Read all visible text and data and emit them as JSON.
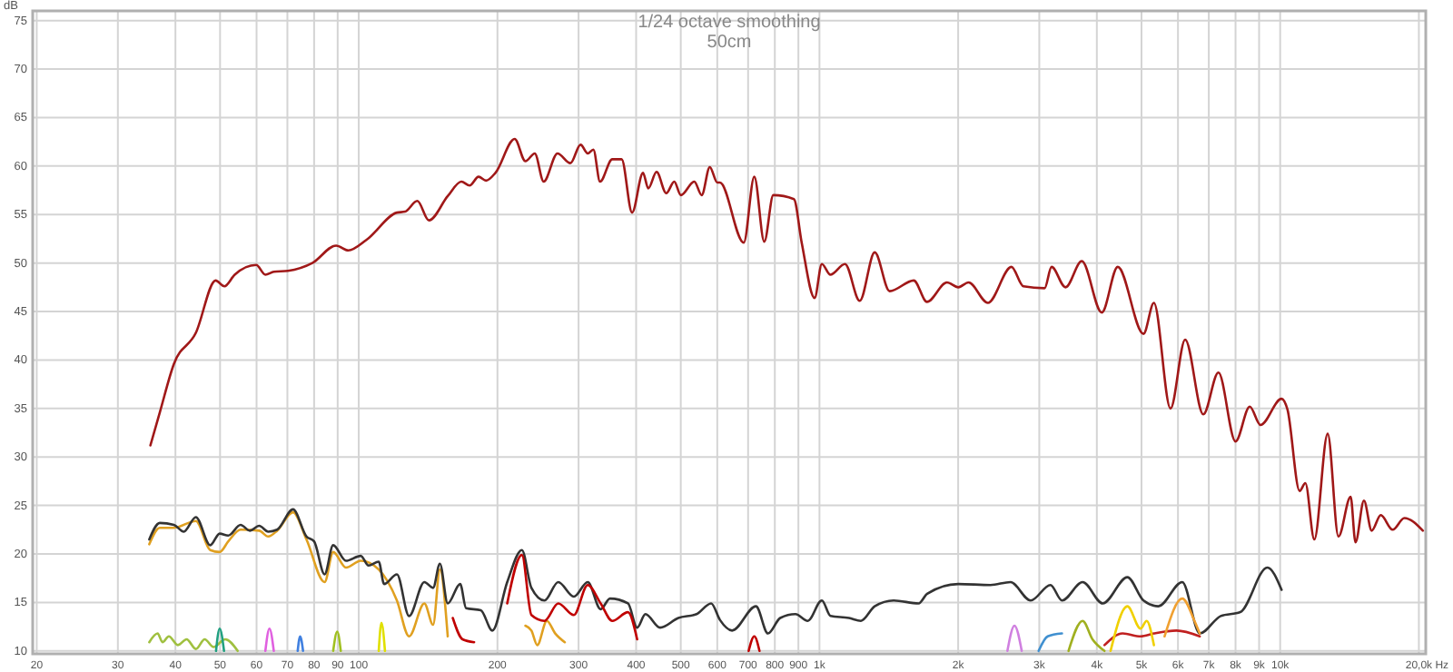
{
  "chart_data": {
    "type": "line",
    "title": "1/24 octave smoothing",
    "subtitle": "50cm",
    "xlabel": "Hz",
    "ylabel": "dB",
    "log": "x",
    "grid": true,
    "xlim": [
      19.6,
      20700
    ],
    "ylim": [
      9.7,
      76
    ],
    "xticks": [
      20,
      30,
      40,
      50,
      60,
      70,
      80,
      90,
      100,
      200,
      300,
      400,
      500,
      600,
      700,
      800,
      900,
      {
        "value": 1000,
        "label": "1k"
      },
      {
        "value": 2000,
        "label": "2k"
      },
      {
        "value": 3000,
        "label": "3k"
      },
      {
        "value": 4000,
        "label": "4k"
      },
      {
        "value": 5000,
        "label": "5k"
      },
      {
        "value": 6000,
        "label": "6k"
      },
      {
        "value": 7000,
        "label": "7k"
      },
      {
        "value": 8000,
        "label": "8k"
      },
      {
        "value": 9000,
        "label": "9k"
      },
      {
        "value": 10000,
        "label": "10k"
      },
      {
        "value": 20000,
        "label": "20,0k"
      }
    ],
    "yticks": [
      10,
      15,
      20,
      25,
      30,
      35,
      40,
      45,
      50,
      55,
      60,
      65,
      70,
      75
    ],
    "series": [
      {
        "color": "#a01818",
        "x": [
          35.3,
          37.0,
          39.7,
          44.3,
          48.9,
          51.1,
          53.8,
          59.9,
          62.7,
          65.4,
          70.2,
          79.3,
          89.3,
          94.9,
          104,
          121,
          126,
          134,
          142,
          156,
          167,
          174,
          182,
          189,
          198,
          218,
          230,
          241,
          252,
          270,
          288,
          303,
          314,
          323,
          334,
          355,
          372,
          392,
          414,
          425,
          443,
          465,
          484,
          500,
          535,
          555,
          578,
          600,
          608,
          685,
          722,
          759,
          794,
          880,
          915,
          976,
          1012,
          1056,
          1136,
          1223,
          1318,
          1420,
          1602,
          1711,
          1891,
          2001,
          2107,
          2320,
          2610,
          2770,
          3080,
          3190,
          3420,
          3710,
          4100,
          4440,
          5050,
          5320,
          5780,
          6220,
          6810,
          7345,
          8000,
          8590,
          9060,
          10070,
          10370,
          11020,
          11340,
          11860,
          12680,
          13380,
          14220,
          14570,
          15200,
          15800,
          16530,
          17540,
          18600,
          20400
        ],
        "values": [
          31.2,
          34.6,
          39.6,
          42.8,
          48.2,
          47.6,
          48.8,
          49.8,
          48.8,
          49.1,
          49.2,
          50,
          51.8,
          51.3,
          52.4,
          55.2,
          55.3,
          56.4,
          54.4,
          56.9,
          58.4,
          58,
          58.9,
          58.5,
          59.3,
          62.8,
          60.5,
          61.3,
          58.4,
          61.3,
          60.3,
          62.2,
          61.3,
          61.7,
          58.4,
          60.7,
          60.7,
          55.2,
          59.3,
          57.7,
          59.4,
          57.2,
          58.4,
          57,
          58.4,
          57,
          59.9,
          58.3,
          58.3,
          52.1,
          58.9,
          52.2,
          57,
          56.6,
          52.1,
          46.4,
          49.9,
          48.8,
          49.9,
          46.1,
          51.1,
          47.1,
          48.2,
          46,
          48,
          47.5,
          48,
          45.9,
          49.6,
          47.6,
          47.4,
          49.6,
          47.5,
          50.2,
          44.9,
          49.6,
          42.7,
          45.9,
          35,
          42.1,
          34.4,
          38.7,
          31.6,
          35.2,
          33.3,
          36,
          34.9,
          26.5,
          27.3,
          21.5,
          32.4,
          21.8,
          25.9,
          21.2,
          25.5,
          22.4,
          24,
          22.5,
          23.7,
          22.4
        ]
      },
      {
        "color": "#e0a020",
        "x": [
          35.1,
          37.0,
          39.7,
          44.3,
          47.6,
          49.9,
          52.1,
          55.4,
          60.8,
          63.6,
          66.5,
          72.0,
          77.0,
          84.3,
          88.0,
          93.8,
          101,
          110.5,
          121,
          128.6,
          138.8,
          145,
          150,
          156,
          162,
          230,
          237,
          244,
          256,
          267,
          280
        ],
        "values": [
          21.0,
          22.7,
          22.7,
          23.4,
          20.4,
          20.2,
          21.3,
          22.5,
          22.4,
          21.8,
          22.4,
          24.3,
          21.5,
          17.1,
          20.2,
          18.6,
          19.3,
          18.4,
          15.2,
          11.5,
          14.9,
          12.7,
          18.4,
          11.5,
          null,
          12.6,
          12.1,
          10.6,
          13.1,
          11.8,
          10.9
        ]
      },
      {
        "color": "#333333",
        "x": [
          35.1,
          37.0,
          39.7,
          41.7,
          44.3,
          47.6,
          49.9,
          52.1,
          55.4,
          58.0,
          60.8,
          63.6,
          66.5,
          72.0,
          77.0,
          80,
          84.3,
          88.0,
          93.8,
          101,
          105,
          110.5,
          113.5,
          121,
          128.6,
          138.8,
          145,
          150,
          156,
          166,
          171,
          184,
          195,
          210,
          226,
          237,
          253,
          271,
          293,
          314,
          335,
          351,
          384,
          402,
          419,
          451,
          494,
          541,
          582,
          608,
          646,
          728,
          773,
          822,
          887,
          943,
          1012,
          1057,
          1159,
          1230,
          1318,
          1449,
          1641,
          1713,
          2001,
          2351,
          2598,
          2873,
          3172,
          3362,
          3725,
          4120,
          4660,
          5050,
          5440,
          6130,
          6690,
          7430,
          8190,
          9380,
          10070
        ],
        "values": [
          21.5,
          23.2,
          23.0,
          22.3,
          23.8,
          20.9,
          22.1,
          21.9,
          23.0,
          22.4,
          22.9,
          22.3,
          22.5,
          24.6,
          21.8,
          21.3,
          17.9,
          20.9,
          19.3,
          19.8,
          18.8,
          19.2,
          16.9,
          17.9,
          13.6,
          17.1,
          16.5,
          19.0,
          14.9,
          16.9,
          14.4,
          14.2,
          12.1,
          17.1,
          20.4,
          16.5,
          15.2,
          17.1,
          15.6,
          17.1,
          14.3,
          15.4,
          14.9,
          12.4,
          13.8,
          12.4,
          13.4,
          13.8,
          14.9,
          13.2,
          12.1,
          14.6,
          11.8,
          13.4,
          13.8,
          13.1,
          15.2,
          13.6,
          13.4,
          13.1,
          14.6,
          15.2,
          14.9,
          15.9,
          16.9,
          16.8,
          17.1,
          15.2,
          16.8,
          15.2,
          17.1,
          14.9,
          17.6,
          15.2,
          14.6,
          17.1,
          11.8,
          13.6,
          14.0,
          18.6,
          16.3
        ]
      },
      {
        "color": "#c00000",
        "x": [
          160,
          168,
          178,
          195,
          210,
          226,
          237,
          253,
          271,
          293,
          314,
          335,
          355,
          384,
          402,
          420,
          702,
          722,
          741
        ],
        "values": [
          13.4,
          11.2,
          10.9,
          null,
          14.9,
          19.9,
          13.7,
          13.1,
          14.9,
          13.7,
          16.8,
          14.9,
          13.1,
          14.0,
          11.2,
          null,
          10,
          11.5,
          10
        ]
      },
      {
        "color": "#c02020",
        "x": [
          4156,
          4550,
          4978,
          5320,
          5956,
          6690
        ],
        "values": [
          10.6,
          11.8,
          11.5,
          11.8,
          12.1,
          11.5
        ]
      },
      {
        "color": "#a0c040",
        "x": [
          35.1,
          36.6,
          37.5,
          38.7,
          40.5,
          42.3,
          44.3,
          46.3,
          48.4,
          51.3,
          54.6
        ],
        "values": [
          10.9,
          11.8,
          10.9,
          11.5,
          10.6,
          11.2,
          10.2,
          11.2,
          10.4,
          11.2,
          10
        ]
      },
      {
        "color": "#20a080",
        "x": [
          49.0,
          49.9,
          51.0
        ],
        "values": [
          10,
          12.3,
          10
        ]
      },
      {
        "color": "#e060e0",
        "x": [
          62.7,
          64.0,
          65.4
        ],
        "values": [
          10,
          12.3,
          10
        ]
      },
      {
        "color": "#4080e0",
        "x": [
          73.7,
          74.6,
          75.7
        ],
        "values": [
          10,
          11.5,
          10
        ]
      },
      {
        "color": "#a0c020",
        "x": [
          88.0,
          89.8,
          91.4
        ],
        "values": [
          10,
          12.0,
          10
        ]
      },
      {
        "color": "#e0e000",
        "x": [
          110.5,
          112,
          114
        ],
        "values": [
          10,
          12.9,
          10
        ]
      },
      {
        "color": "#d080e0",
        "x": [
          2558,
          2650,
          2748
        ],
        "values": [
          10,
          12.6,
          10
        ]
      },
      {
        "color": "#4090d0",
        "x": [
          2990,
          3128,
          3360
        ],
        "values": [
          10,
          11.5,
          11.8
        ]
      },
      {
        "color": "#a0b020",
        "x": [
          3472,
          3725,
          3914,
          4156
        ],
        "values": [
          10,
          13.1,
          11.2,
          10
        ]
      },
      {
        "color": "#f0d000",
        "x": [
          4284,
          4660,
          4978,
          5130,
          5320
        ],
        "values": [
          10,
          14.6,
          12.3,
          13.1,
          10.6
        ]
      },
      {
        "color": "#f0a030",
        "x": [
          5610,
          6130,
          6516,
          6690
        ],
        "values": [
          11.5,
          15.4,
          13.1,
          11.8
        ]
      }
    ]
  }
}
